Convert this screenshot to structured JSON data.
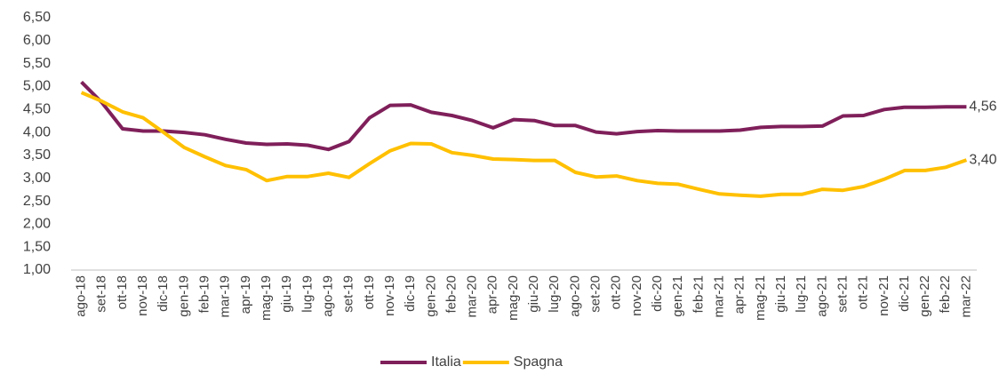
{
  "chart_data": {
    "type": "line",
    "categories": [
      "ago-18",
      "set-18",
      "ott-18",
      "nov-18",
      "dic-18",
      "gen-19",
      "feb-19",
      "mar-19",
      "apr-19",
      "mag-19",
      "giu-19",
      "lug-19",
      "ago-19",
      "set-19",
      "ott-19",
      "nov-19",
      "dic-19",
      "gen-20",
      "feb-20",
      "mar-20",
      "apr-20",
      "mag-20",
      "giu-20",
      "lug-20",
      "ago-20",
      "set-20",
      "ott-20",
      "nov-20",
      "dic-20",
      "gen-21",
      "feb-21",
      "mar-21",
      "apr-21",
      "mag-21",
      "giu-21",
      "lug-21",
      "ago-21",
      "set-21",
      "ott-21",
      "nov-21",
      "dic-21",
      "gen-22",
      "feb-22",
      "mar-22"
    ],
    "series": [
      {
        "name": "Italia",
        "color": "#7f1f5a",
        "values": [
          5.1,
          4.65,
          4.08,
          4.03,
          4.03,
          4.0,
          3.95,
          3.85,
          3.77,
          3.74,
          3.75,
          3.72,
          3.63,
          3.8,
          4.32,
          4.59,
          4.6,
          4.44,
          4.37,
          4.26,
          4.1,
          4.28,
          4.26,
          4.15,
          4.15,
          4.01,
          3.97,
          4.02,
          4.04,
          4.03,
          4.03,
          4.03,
          4.05,
          4.11,
          4.13,
          4.13,
          4.14,
          4.36,
          4.37,
          4.5,
          4.55,
          4.55,
          4.56,
          4.56
        ],
        "value_labels": [
          null,
          null,
          null,
          null,
          null,
          null,
          null,
          null,
          null,
          null,
          null,
          null,
          null,
          null,
          null,
          null,
          null,
          null,
          null,
          null,
          null,
          null,
          null,
          null,
          null,
          null,
          null,
          null,
          null,
          null,
          null,
          null,
          null,
          null,
          null,
          null,
          null,
          null,
          null,
          null,
          null,
          null,
          null,
          "4,56"
        ]
      },
      {
        "name": "Spagna",
        "color": "#ffc000",
        "values": [
          4.87,
          4.68,
          4.45,
          4.32,
          4.0,
          3.67,
          3.47,
          3.28,
          3.19,
          2.95,
          3.04,
          3.04,
          3.11,
          3.02,
          3.32,
          3.6,
          3.76,
          3.75,
          3.56,
          3.5,
          3.42,
          3.41,
          3.39,
          3.39,
          3.13,
          3.03,
          3.05,
          2.95,
          2.89,
          2.87,
          2.76,
          2.66,
          2.63,
          2.61,
          2.65,
          2.65,
          2.76,
          2.74,
          2.82,
          2.98,
          3.17,
          3.17,
          3.24,
          3.4
        ],
        "value_labels": [
          null,
          null,
          null,
          null,
          null,
          null,
          null,
          null,
          null,
          null,
          null,
          null,
          null,
          null,
          null,
          null,
          null,
          null,
          null,
          null,
          null,
          null,
          null,
          null,
          null,
          null,
          null,
          null,
          null,
          null,
          null,
          null,
          null,
          null,
          null,
          null,
          null,
          null,
          null,
          null,
          null,
          null,
          null,
          "3,40"
        ]
      }
    ],
    "ylim": [
      1,
      6.5
    ],
    "yticks": [
      {
        "value": 1,
        "label": "1,00"
      },
      {
        "value": 1.5,
        "label": "1,50"
      },
      {
        "value": 2,
        "label": "2,00"
      },
      {
        "value": 2.5,
        "label": "2,50"
      },
      {
        "value": 3,
        "label": "3,00"
      },
      {
        "value": 3.5,
        "label": "3,50"
      },
      {
        "value": 4,
        "label": "4,00"
      },
      {
        "value": 4.5,
        "label": "4,50"
      },
      {
        "value": 5,
        "label": "5,00"
      },
      {
        "value": 5.5,
        "label": "5,50"
      },
      {
        "value": 6,
        "label": "6,00"
      },
      {
        "value": 6.5,
        "label": "6,50"
      }
    ],
    "grid": false,
    "legend": "bottom"
  }
}
